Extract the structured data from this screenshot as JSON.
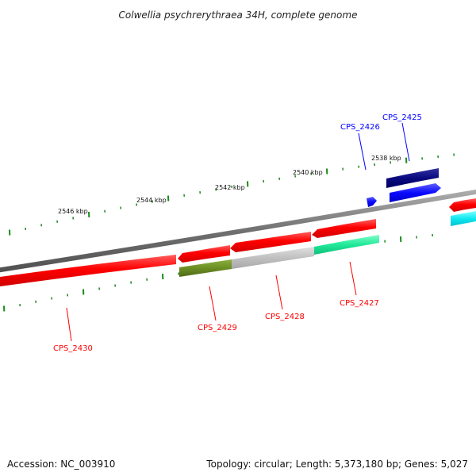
{
  "title": "Colwellia psychrerythraea 34H, complete genome",
  "footer": {
    "accession": "Accession: NC_003910",
    "stats": "Topology: circular; Length: 5,373,180 bp; Genes: 5,027"
  },
  "tick_labels": [
    "2546 kbp",
    "2544 kbp",
    "2542 kbp",
    "2540 kbp",
    "2538 kbp"
  ],
  "genes": [
    {
      "label": "CPS_2430",
      "color": "#ff0000"
    },
    {
      "label": "CPS_2429",
      "color": "#ff0000"
    },
    {
      "label": "CPS_2428",
      "color": "#ff0000"
    },
    {
      "label": "CPS_2427",
      "color": "#ff0000"
    },
    {
      "label": "CPS_2426",
      "color": "#0000ff"
    },
    {
      "label": "CPS_2425",
      "color": "#0000ff"
    }
  ],
  "colors": {
    "backbone": "#7a7a7a",
    "ticks": "#1a8a1a",
    "red": "#ff1010",
    "olive": "#6b8e23",
    "grey": "#c0c0c0",
    "teal": "#2ee8a0",
    "navy": "#0a0a80",
    "blue": "#0a0aff",
    "cyan": "#10e8f0"
  }
}
